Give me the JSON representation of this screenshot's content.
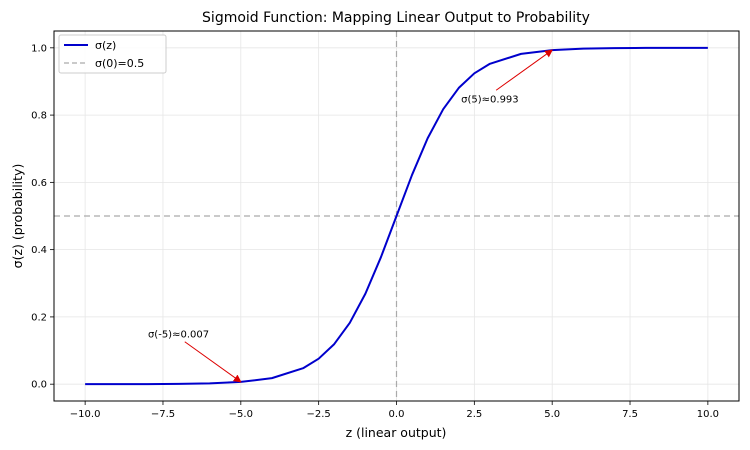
{
  "chart_data": {
    "type": "line",
    "title": "Sigmoid Function: Mapping Linear Output to Probability",
    "xlabel": "z (linear output)",
    "ylabel": "σ(z) (probability)",
    "xlim": [
      -11,
      11
    ],
    "ylim": [
      -0.05,
      1.05
    ],
    "xticks": [
      -10.0,
      -7.5,
      -5.0,
      -2.5,
      0.0,
      2.5,
      5.0,
      7.5,
      10.0
    ],
    "xtick_labels": [
      "−10.0",
      "−7.5",
      "−5.0",
      "−2.5",
      "0.0",
      "2.5",
      "5.0",
      "7.5",
      "10.0"
    ],
    "yticks": [
      0.0,
      0.2,
      0.4,
      0.6,
      0.8,
      1.0
    ],
    "ytick_labels": [
      "0.0",
      "0.2",
      "0.4",
      "0.6",
      "0.8",
      "1.0"
    ],
    "grid": true,
    "legend_position": "top-left",
    "series": [
      {
        "name": "σ(z)",
        "color": "#0000cc",
        "style": "solid",
        "x": [
          -10,
          -9,
          -8,
          -7,
          -6,
          -5,
          -4,
          -3,
          -2.5,
          -2,
          -1.5,
          -1,
          -0.5,
          0,
          0.5,
          1,
          1.5,
          2,
          2.5,
          3,
          4,
          5,
          6,
          7,
          8,
          9,
          10
        ],
        "y": [
          4.54e-05,
          0.0001234,
          0.0003354,
          0.000911,
          0.002473,
          0.006693,
          0.017986,
          0.047426,
          0.075858,
          0.119203,
          0.182426,
          0.268941,
          0.377541,
          0.5,
          0.622459,
          0.731059,
          0.817574,
          0.880797,
          0.924142,
          0.952574,
          0.982014,
          0.993307,
          0.997527,
          0.999089,
          0.999665,
          0.999877,
          0.999955
        ]
      }
    ],
    "reference_lines": [
      {
        "name": "σ(0)=0.5",
        "orientation": "horizontal",
        "value": 0.5,
        "color": "#aaaaaa",
        "style": "dashed",
        "in_legend": true
      },
      {
        "orientation": "vertical",
        "value": 0,
        "color": "#aaaaaa",
        "style": "dashed",
        "in_legend": false
      }
    ],
    "annotations": [
      {
        "text": "σ(-5)≈0.007",
        "point": [
          -5,
          0.006693
        ],
        "text_anchor_at": [
          -7,
          0.15
        ],
        "arrow_color": "#dd0000"
      },
      {
        "text": "σ(5)≈0.993",
        "point": [
          5,
          0.993307
        ],
        "text_anchor_at": [
          3,
          0.85
        ],
        "arrow_color": "#dd0000"
      }
    ]
  }
}
